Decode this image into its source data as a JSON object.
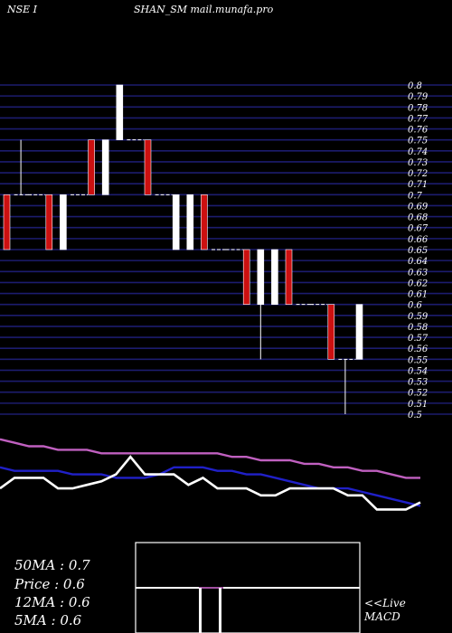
{
  "header": {
    "left": "NSE I",
    "center": "SHAN_SM mail.munafa.pro"
  },
  "chart_data": {
    "type": "candlestick",
    "y_ticks": [
      0.8,
      0.79,
      0.78,
      0.77,
      0.76,
      0.75,
      0.74,
      0.73,
      0.72,
      0.71,
      0.7,
      0.69,
      0.68,
      0.67,
      0.66,
      0.65,
      0.64,
      0.63,
      0.62,
      0.61,
      0.6,
      0.59,
      0.58,
      0.57,
      0.56,
      0.55,
      0.54,
      0.53,
      0.52,
      0.51,
      0.5
    ],
    "ylim": [
      0.5,
      0.8
    ],
    "candles": [
      {
        "o": 0.7,
        "h": 0.7,
        "l": 0.65,
        "c": 0.65,
        "color": "red"
      },
      {
        "o": 0.7,
        "h": 0.75,
        "l": 0.7,
        "c": 0.7,
        "color": "white"
      },
      {
        "o": 0.7,
        "h": 0.7,
        "l": 0.7,
        "c": 0.7,
        "color": "white"
      },
      {
        "o": 0.7,
        "h": 0.7,
        "l": 0.65,
        "c": 0.65,
        "color": "red"
      },
      {
        "o": 0.65,
        "h": 0.7,
        "l": 0.65,
        "c": 0.7,
        "color": "white"
      },
      {
        "o": 0.7,
        "h": 0.7,
        "l": 0.7,
        "c": 0.7,
        "color": "white"
      },
      {
        "o": 0.75,
        "h": 0.75,
        "l": 0.7,
        "c": 0.7,
        "color": "red"
      },
      {
        "o": 0.7,
        "h": 0.75,
        "l": 0.7,
        "c": 0.75,
        "color": "white"
      },
      {
        "o": 0.75,
        "h": 0.8,
        "l": 0.75,
        "c": 0.8,
        "color": "white"
      },
      {
        "o": 0.75,
        "h": 0.75,
        "l": 0.75,
        "c": 0.75,
        "color": "white"
      },
      {
        "o": 0.75,
        "h": 0.75,
        "l": 0.7,
        "c": 0.7,
        "color": "red"
      },
      {
        "o": 0.7,
        "h": 0.7,
        "l": 0.7,
        "c": 0.7,
        "color": "white"
      },
      {
        "o": 0.7,
        "h": 0.7,
        "l": 0.65,
        "c": 0.65,
        "color": "white"
      },
      {
        "o": 0.7,
        "h": 0.7,
        "l": 0.65,
        "c": 0.65,
        "color": "white"
      },
      {
        "o": 0.7,
        "h": 0.7,
        "l": 0.65,
        "c": 0.65,
        "color": "red"
      },
      {
        "o": 0.65,
        "h": 0.65,
        "l": 0.65,
        "c": 0.65,
        "color": "white"
      },
      {
        "o": 0.65,
        "h": 0.65,
        "l": 0.65,
        "c": 0.65,
        "color": "white"
      },
      {
        "o": 0.65,
        "h": 0.65,
        "l": 0.6,
        "c": 0.6,
        "color": "red"
      },
      {
        "o": 0.6,
        "h": 0.65,
        "l": 0.55,
        "c": 0.65,
        "color": "white"
      },
      {
        "o": 0.65,
        "h": 0.65,
        "l": 0.6,
        "c": 0.6,
        "color": "white"
      },
      {
        "o": 0.65,
        "h": 0.65,
        "l": 0.6,
        "c": 0.6,
        "color": "red"
      },
      {
        "o": 0.6,
        "h": 0.6,
        "l": 0.6,
        "c": 0.6,
        "color": "white"
      },
      {
        "o": 0.6,
        "h": 0.6,
        "l": 0.6,
        "c": 0.6,
        "color": "white"
      },
      {
        "o": 0.6,
        "h": 0.6,
        "l": 0.55,
        "c": 0.55,
        "color": "red"
      },
      {
        "o": 0.55,
        "h": 0.55,
        "l": 0.5,
        "c": 0.55,
        "color": "white"
      },
      {
        "o": 0.55,
        "h": 0.6,
        "l": 0.55,
        "c": 0.6,
        "color": "white"
      }
    ],
    "lower_lines": [
      {
        "name": "50ma",
        "color": "#c060c0",
        "values": [
          0.78,
          0.77,
          0.76,
          0.76,
          0.75,
          0.75,
          0.75,
          0.74,
          0.74,
          0.74,
          0.74,
          0.74,
          0.74,
          0.74,
          0.74,
          0.74,
          0.73,
          0.73,
          0.72,
          0.72,
          0.72,
          0.71,
          0.71,
          0.7,
          0.7,
          0.69,
          0.69,
          0.68,
          0.67,
          0.67
        ]
      },
      {
        "name": "12ma",
        "color": "#2020c8",
        "values": [
          0.7,
          0.69,
          0.69,
          0.69,
          0.69,
          0.68,
          0.68,
          0.68,
          0.67,
          0.67,
          0.67,
          0.68,
          0.7,
          0.7,
          0.7,
          0.69,
          0.69,
          0.68,
          0.68,
          0.67,
          0.66,
          0.65,
          0.64,
          0.64,
          0.64,
          0.63,
          0.62,
          0.61,
          0.6,
          0.59
        ]
      },
      {
        "name": "5ma",
        "color": "#ffffff",
        "values": [
          0.64,
          0.67,
          0.67,
          0.67,
          0.64,
          0.64,
          0.65,
          0.66,
          0.68,
          0.73,
          0.68,
          0.68,
          0.68,
          0.65,
          0.67,
          0.64,
          0.64,
          0.64,
          0.62,
          0.62,
          0.64,
          0.64,
          0.64,
          0.64,
          0.62,
          0.62,
          0.58,
          0.58,
          0.58,
          0.6
        ]
      }
    ]
  },
  "stats": {
    "ma50": "50MA : 0.7",
    "price": "Price  : 0.6",
    "ma12": "12MA : 0.6",
    "ma5": "5MA : 0.6"
  },
  "macd": {
    "label1": "<<Live",
    "label2": "MACD"
  }
}
